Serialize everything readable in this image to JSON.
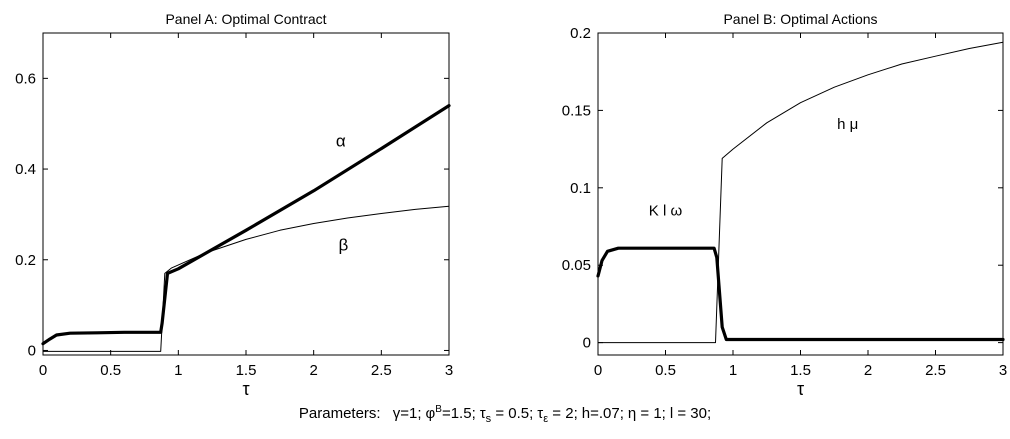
{
  "chart_data": [
    {
      "type": "line",
      "title": "Panel A: Optimal Contract",
      "xlabel": "τ",
      "ylabel": "",
      "xlim": [
        0,
        3
      ],
      "ylim": [
        -0.01,
        0.7
      ],
      "x_ticks": [
        0,
        0.5,
        1,
        1.5,
        2,
        2.5,
        3
      ],
      "x_tick_labels": [
        "0",
        "0.5",
        "1",
        "1.5",
        "2",
        "2.5",
        "3"
      ],
      "y_ticks": [
        0,
        0.2,
        0.4,
        0.6
      ],
      "y_tick_labels": [
        "0",
        "0.2",
        "0.4",
        "0.6"
      ],
      "grid": false,
      "series": [
        {
          "name": "α",
          "style": "thick",
          "points": [
            [
              0,
              0.015
            ],
            [
              0.05,
              0.025
            ],
            [
              0.1,
              0.034
            ],
            [
              0.2,
              0.038
            ],
            [
              0.4,
              0.039
            ],
            [
              0.6,
              0.04
            ],
            [
              0.8,
              0.04
            ],
            [
              0.87,
              0.04
            ],
            [
              0.88,
              0.06
            ],
            [
              0.92,
              0.17
            ],
            [
              1.0,
              0.18
            ],
            [
              1.5,
              0.265
            ],
            [
              2.0,
              0.352
            ],
            [
              2.5,
              0.445
            ],
            [
              3.0,
              0.54
            ]
          ]
        },
        {
          "name": "β",
          "style": "thin",
          "points": [
            [
              0,
              -0.002
            ],
            [
              0.5,
              -0.002
            ],
            [
              0.87,
              -0.002
            ],
            [
              0.9,
              0.17
            ],
            [
              0.95,
              0.182
            ],
            [
              1.2,
              0.215
            ],
            [
              1.5,
              0.245
            ],
            [
              1.75,
              0.265
            ],
            [
              2.0,
              0.28
            ],
            [
              2.25,
              0.292
            ],
            [
              2.5,
              0.302
            ],
            [
              2.75,
              0.311
            ],
            [
              3.0,
              0.318
            ]
          ]
        }
      ],
      "annotations": [
        {
          "text": "α",
          "x": 2.2,
          "y": 0.45
        },
        {
          "text": "β",
          "x": 2.22,
          "y": 0.22
        }
      ]
    },
    {
      "type": "line",
      "title": "Panel B: Optimal Actions",
      "xlabel": "τ",
      "ylabel": "",
      "xlim": [
        0,
        3
      ],
      "ylim": [
        -0.008,
        0.2
      ],
      "x_ticks": [
        0,
        0.5,
        1,
        1.5,
        2,
        2.5,
        3
      ],
      "x_tick_labels": [
        "0",
        "0.5",
        "1",
        "1.5",
        "2",
        "2.5",
        "3"
      ],
      "y_ticks": [
        0,
        0.05,
        0.1,
        0.15,
        0.2
      ],
      "y_tick_labels": [
        "0",
        "0.05",
        "0.1",
        "0.15",
        "0.2"
      ],
      "grid": false,
      "series": [
        {
          "name": "K l ω",
          "style": "thick",
          "points": [
            [
              0,
              0.043
            ],
            [
              0.03,
              0.053
            ],
            [
              0.07,
              0.059
            ],
            [
              0.15,
              0.061
            ],
            [
              0.5,
              0.061
            ],
            [
              0.86,
              0.061
            ],
            [
              0.88,
              0.055
            ],
            [
              0.92,
              0.01
            ],
            [
              0.95,
              0.002
            ],
            [
              1.5,
              0.002
            ],
            [
              2.0,
              0.002
            ],
            [
              2.5,
              0.002
            ],
            [
              3.0,
              0.002
            ]
          ]
        },
        {
          "name": "h μ",
          "style": "thin",
          "points": [
            [
              0,
              0.0
            ],
            [
              0.5,
              0.0
            ],
            [
              0.87,
              0.0
            ],
            [
              0.92,
              0.119
            ],
            [
              1.0,
              0.125
            ],
            [
              1.25,
              0.142
            ],
            [
              1.5,
              0.155
            ],
            [
              1.75,
              0.165
            ],
            [
              2.0,
              0.173
            ],
            [
              2.25,
              0.18
            ],
            [
              2.5,
              0.185
            ],
            [
              2.75,
              0.19
            ],
            [
              3.0,
              0.194
            ]
          ]
        }
      ],
      "annotations": [
        {
          "text": "K l ω",
          "x": 0.5,
          "y": 0.082
        },
        {
          "text": "h μ",
          "x": 1.85,
          "y": 0.138
        }
      ]
    }
  ],
  "footer": {
    "prefix": "Parameters:",
    "params": [
      {
        "sym": "γ",
        "rest": "=1;"
      },
      {
        "sym": "φ",
        "sup": "B",
        "rest": "=1.5;"
      },
      {
        "sym": "τ",
        "sub": "s",
        "rest": " = 0.5;"
      },
      {
        "sym": "τ",
        "sub": "ε",
        "rest": " = 2;"
      },
      {
        "sym": "",
        "rest": "h=.07;"
      },
      {
        "sym": "η",
        "rest": " = 1;"
      },
      {
        "sym": "",
        "rest": "l = 30;"
      }
    ]
  }
}
